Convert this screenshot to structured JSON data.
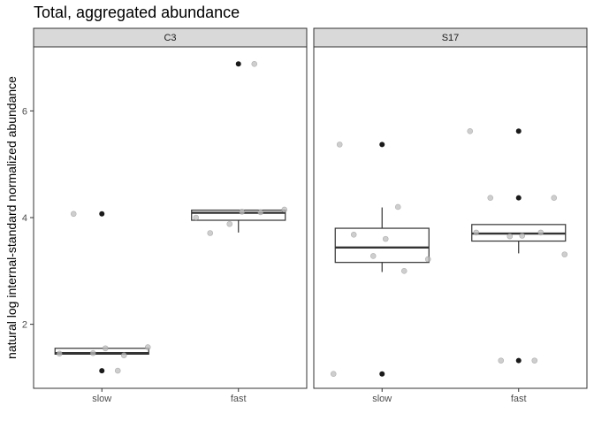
{
  "chart_data": {
    "type": "boxplot",
    "title": "Total, aggregated abundance",
    "xlabel": "",
    "ylabel": "natural log internal-standard normalized abundance",
    "categories": [
      "slow",
      "fast"
    ],
    "ylim": [
      0.8,
      7.2
    ],
    "yticks": [
      2,
      4,
      6
    ],
    "grid": false,
    "colors": {
      "strip_fill": "#d9d9d9",
      "panel_border": "#333333",
      "box_line": "#333333",
      "outlier": "#1a1a1a",
      "jitter_point": "#bdbdbd"
    },
    "panels": [
      {
        "facet": "C3",
        "groups": [
          {
            "category": "slow",
            "box": {
              "q1": 1.44,
              "median": 1.46,
              "q3": 1.55,
              "whisker_low": 1.44,
              "whisker_high": 1.55
            },
            "outliers": [
              4.07,
              1.13
            ],
            "points": [
              {
                "x": "slow",
                "y": 1.45
              },
              {
                "x": "slow",
                "y": 1.46
              },
              {
                "x": "slow",
                "y": 1.42
              },
              {
                "x": "slow",
                "y": 1.55
              },
              {
                "x": "slow",
                "y": 1.57
              },
              {
                "x": "slow",
                "y": 4.07
              },
              {
                "x": "slow",
                "y": 1.13
              }
            ]
          },
          {
            "category": "fast",
            "box": {
              "q1": 3.95,
              "median": 4.09,
              "q3": 4.14,
              "whisker_low": 3.72,
              "whisker_high": 4.14
            },
            "outliers": [
              6.88
            ],
            "points": [
              {
                "x": "fast",
                "y": 4.0
              },
              {
                "x": "fast",
                "y": 3.88
              },
              {
                "x": "fast",
                "y": 4.1
              },
              {
                "x": "fast",
                "y": 4.11
              },
              {
                "x": "fast",
                "y": 4.15
              },
              {
                "x": "fast",
                "y": 3.71
              },
              {
                "x": "fast",
                "y": 6.88
              }
            ]
          }
        ]
      },
      {
        "facet": "S17",
        "groups": [
          {
            "category": "slow",
            "box": {
              "q1": 3.16,
              "median": 3.44,
              "q3": 3.8,
              "whisker_low": 2.98,
              "whisker_high": 4.19
            },
            "outliers": [
              5.37,
              1.07
            ],
            "points": [
              {
                "x": "slow",
                "y": 5.37
              },
              {
                "x": "slow",
                "y": 3.28
              },
              {
                "x": "slow",
                "y": 3.0
              },
              {
                "x": "slow",
                "y": 3.6
              },
              {
                "x": "slow",
                "y": 3.22
              },
              {
                "x": "slow",
                "y": 3.68
              },
              {
                "x": "slow",
                "y": 4.2
              },
              {
                "x": "slow",
                "y": 1.07
              }
            ]
          },
          {
            "category": "fast",
            "box": {
              "q1": 3.56,
              "median": 3.7,
              "q3": 3.87,
              "whisker_low": 3.33,
              "whisker_high": 3.87
            },
            "outliers": [
              5.62,
              4.37,
              1.32
            ],
            "points": [
              {
                "x": "fast",
                "y": 3.72
              },
              {
                "x": "fast",
                "y": 3.65
              },
              {
                "x": "fast",
                "y": 3.72
              },
              {
                "x": "fast",
                "y": 3.66
              },
              {
                "x": "fast",
                "y": 3.31
              },
              {
                "x": "fast",
                "y": 4.37
              },
              {
                "x": "fast",
                "y": 1.32
              },
              {
                "x": "fast",
                "y": 5.62
              },
              {
                "x": "fast",
                "y": 4.37
              },
              {
                "x": "fast",
                "y": 1.32
              }
            ]
          }
        ]
      }
    ]
  }
}
